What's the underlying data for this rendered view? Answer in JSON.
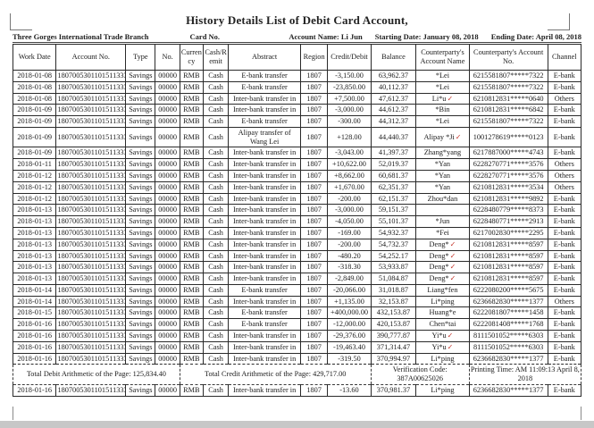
{
  "page": {
    "title": "History Details List of Debit Card Account,",
    "meta": {
      "branch": "Three Gorges International Trade Branch",
      "card_label": "Card No.",
      "account_name": "Account Name: Li Jun",
      "starting_date": "Starting Date: January 08, 2018",
      "ending_date": "Ending Date: April 08, 2018"
    }
  },
  "icons": {
    "red_check": "✓"
  },
  "table": {
    "columns": [
      "Work Date",
      "Account No.",
      "Type",
      "No.",
      "Currency",
      "Cash/Remit",
      "Abstract",
      "Region",
      "Credit/Debit",
      "Balance",
      "Counterparty's Account Name",
      "Counterparty's Account No.",
      "Channel"
    ],
    "rows": [
      {
        "cells": [
          "2018-01-08",
          "1807005301101511333",
          "Savings",
          "00000",
          "RMB",
          "Cash",
          "E-bank transfer",
          "1807",
          "-3,150.00",
          "63,962.37",
          "*Lei",
          "6215581807*****7322",
          "E-bank"
        ]
      },
      {
        "cells": [
          "2018-01-08",
          "1807005301101511333",
          "Savings",
          "00000",
          "RMB",
          "Cash",
          "E-bank transfer",
          "1807",
          "-23,850.00",
          "40,112.37",
          "*Lei",
          "6215581807*****7322",
          "E-bank"
        ]
      },
      {
        "cells": [
          "2018-01-08",
          "1807005301101511333",
          "Savings",
          "00000",
          "RMB",
          "Cash",
          "Inter-bank transfer in",
          "1807",
          "+7,500.00",
          "47,612.37",
          "Li*u",
          "6210812831*****0640",
          "Others"
        ],
        "red_check": true
      },
      {
        "cells": [
          "2018-01-09",
          "1807005301101511333",
          "Savings",
          "00000",
          "RMB",
          "Cash",
          "Inter-bank transfer in",
          "1807",
          "-3,000.00",
          "44,612.37",
          "*Bin",
          "6210812831*****6842",
          "E-bank"
        ]
      },
      {
        "cells": [
          "2018-01-09",
          "1807005301101511333",
          "Savings",
          "00000",
          "RMB",
          "Cash",
          "E-bank transfer",
          "1807",
          "-300.00",
          "44,312.37",
          "*Lei",
          "6215581807*****7322",
          "E-bank"
        ]
      },
      {
        "cells": [
          "2018-01-09",
          "1807005301101511333",
          "Savings",
          "00000",
          "RMB",
          "Cash",
          "Alipay transfer of Wang Lei",
          "1807",
          "+128.00",
          "44,440.37",
          "Alipay *Ji",
          "1001278619*****0123",
          "E-bank"
        ],
        "red_check": true
      },
      {
        "cells": [
          "2018-01-09",
          "1807005301101511333",
          "Savings",
          "00000",
          "RMB",
          "Cash",
          "Inter-bank transfer in",
          "1807",
          "-3,043.00",
          "41,397.37",
          "Zhang*yang",
          "6217887000*****4743",
          "E-bank"
        ]
      },
      {
        "cells": [
          "2018-01-11",
          "1807005301101511333",
          "Savings",
          "00000",
          "RMB",
          "Cash",
          "Inter-bank transfer in",
          "1807",
          "+10,622.00",
          "52,019.37",
          "*Yan",
          "6228270771*****3576",
          "Others"
        ]
      },
      {
        "cells": [
          "2018-01-12",
          "1807005301101511333",
          "Savings",
          "00000",
          "RMB",
          "Cash",
          "Inter-bank transfer in",
          "1807",
          "+8,662.00",
          "60,681.37",
          "*Yan",
          "6228270771*****3576",
          "Others"
        ]
      },
      {
        "cells": [
          "2018-01-12",
          "1807005301101511333",
          "Savings",
          "00000",
          "RMB",
          "Cash",
          "Inter-bank transfer in",
          "1807",
          "+1,670.00",
          "62,351.37",
          "*Yan",
          "6210812831*****3534",
          "Others"
        ]
      },
      {
        "cells": [
          "2018-01-12",
          "1807005301101511333",
          "Savings",
          "00000",
          "RMB",
          "Cash",
          "Inter-bank transfer in",
          "1807",
          "-200.00",
          "62,151.37",
          "Zhou*dan",
          "6210812831*****9892",
          "E-bank"
        ]
      },
      {
        "cells": [
          "2018-01-13",
          "1807005301101511333",
          "Savings",
          "00000",
          "RMB",
          "Cash",
          "Inter-bank transfer in",
          "1807",
          "-3,000.00",
          "59,151.37",
          "",
          "6228480779*****8373",
          "E-bank"
        ]
      },
      {
        "cells": [
          "2018-01-13",
          "1807005301101511333",
          "Savings",
          "00000",
          "RMB",
          "Cash",
          "Inter-bank transfer in",
          "1807",
          "-4,050.00",
          "55,101.37",
          "*Jun",
          "6228480771*****2913",
          "E-bank"
        ]
      },
      {
        "cells": [
          "2018-01-13",
          "1807005301101511333",
          "Savings",
          "00000",
          "RMB",
          "Cash",
          "Inter-bank transfer in",
          "1807",
          "-169.00",
          "54,932.37",
          "*Fei",
          "6217002830*****2295",
          "E-bank"
        ]
      },
      {
        "cells": [
          "2018-01-13",
          "1807005301101511333",
          "Savings",
          "00000",
          "RMB",
          "Cash",
          "Inter-bank transfer in",
          "1807",
          "-200.00",
          "54,732.37",
          "Deng*",
          "6210812831*****8597",
          "E-bank"
        ],
        "red_check": true
      },
      {
        "cells": [
          "2018-01-13",
          "1807005301101511333",
          "Savings",
          "00000",
          "RMB",
          "Cash",
          "Inter-bank transfer in",
          "1807",
          "-480.20",
          "54,252.17",
          "Deng*",
          "6210812831*****8597",
          "E-bank"
        ],
        "red_check": true
      },
      {
        "cells": [
          "2018-01-13",
          "1807005301101511333",
          "Savings",
          "00000",
          "RMB",
          "Cash",
          "Inter-bank transfer in",
          "1807",
          "-318.30",
          "53,933.87",
          "Deng*",
          "6210812831*****8597",
          "E-bank"
        ],
        "red_check": true
      },
      {
        "cells": [
          "2018-01-13",
          "1807005301101511333",
          "Savings",
          "00000",
          "RMB",
          "Cash",
          "Inter-bank transfer in",
          "1807",
          "-2,849.00",
          "51,084.87",
          "Deng*",
          "6210812831*****8597",
          "E-bank"
        ],
        "red_check": true
      },
      {
        "cells": [
          "2018-01-14",
          "1807005301101511333",
          "Savings",
          "00000",
          "RMB",
          "Cash",
          "E-bank transfer",
          "1807",
          "-20,066.00",
          "31,018.87",
          "Liang*fen",
          "6222080200*****5675",
          "E-bank"
        ]
      },
      {
        "cells": [
          "2018-01-14",
          "1807005301101511333",
          "Savings",
          "00000",
          "RMB",
          "Cash",
          "Inter-bank transfer in",
          "1807",
          "+1,135.00",
          "32,153.87",
          "Li*ping",
          "6236682830*****1377",
          "Others"
        ]
      },
      {
        "cells": [
          "2018-01-15",
          "1807005301101511333",
          "Savings",
          "00000",
          "RMB",
          "Cash",
          "E-bank transfer",
          "1807",
          "+400,000.00",
          "432,153.87",
          "Huang*e",
          "6222081807*****1458",
          "E-bank"
        ]
      },
      {
        "cells": [
          "2018-01-16",
          "1807005301101511333",
          "Savings",
          "00000",
          "RMB",
          "Cash",
          "E-bank transfer",
          "1807",
          "-12,000.00",
          "420,153.87",
          "Chen*tai",
          "6222081408*****1768",
          "E-bank"
        ]
      },
      {
        "cells": [
          "2018-01-16",
          "1807005301101511333",
          "Savings",
          "00000",
          "RMB",
          "Cash",
          "Inter-bank transfer in",
          "1807",
          "-29,376.00",
          "390,777.87",
          "Yi*u",
          "8111501052*****6303",
          "E-bank"
        ],
        "red_check": true
      },
      {
        "cells": [
          "2018-01-16",
          "1807005301101511333",
          "Savings",
          "00000",
          "RMB",
          "Cash",
          "Inter-bank transfer in",
          "1807",
          "-19,463.40",
          "371,314.47",
          "Yi*u",
          "8111501052*****6303",
          "E-bank"
        ],
        "red_check": true
      },
      {
        "cells": [
          "2018-01-16",
          "1807005301101511333",
          "Savings",
          "00000",
          "RMB",
          "Cash",
          "Inter-bank transfer in",
          "1807",
          "-319.50",
          "370,994.97",
          "Li*ping",
          "6236682830*****1377",
          "E-bank"
        ]
      }
    ],
    "totals_row": {
      "total_debit": "Total Debit Arithmetic of the Page: 125,834.40",
      "total_credit": "Total Credit Arithmetic of the Page: 429,717.00",
      "verification": "Verification Code: 387A00625026",
      "printing_time": "Printing Time: AM 11:09:13 April 8, 2018"
    },
    "after_totals_row": {
      "cells": [
        "2018-01-16",
        "1807005301101511333",
        "Savings",
        "00000",
        "RMB",
        "Cash",
        "Inter-bank transfer in",
        "1807",
        "-13.60",
        "370,981.37",
        "Li*ping",
        "6236682830*****1377",
        "E-bank"
      ]
    }
  }
}
